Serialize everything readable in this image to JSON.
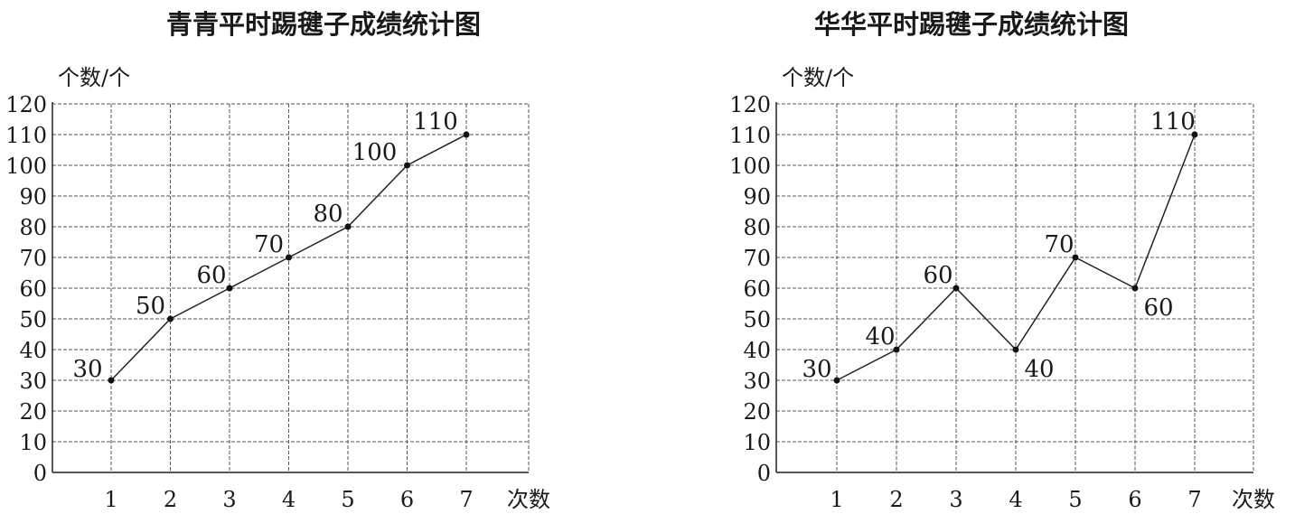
{
  "chart_data": [
    {
      "type": "line",
      "title": "青青平时踢毽子成绩统计图",
      "ylabel": "个数/个",
      "xlabel": "次数",
      "x": [
        1,
        2,
        3,
        4,
        5,
        6,
        7
      ],
      "y_ticks": [
        0,
        10,
        20,
        30,
        40,
        50,
        60,
        70,
        80,
        90,
        100,
        110,
        120
      ],
      "ylim": [
        0,
        120
      ],
      "grid": true,
      "series": [
        {
          "values": [
            30,
            50,
            60,
            70,
            80,
            100,
            110
          ]
        }
      ]
    },
    {
      "type": "line",
      "title": "华华平时踢毽子成绩统计图",
      "ylabel": "个数/个",
      "xlabel": "次数",
      "x": [
        1,
        2,
        3,
        4,
        5,
        6,
        7
      ],
      "y_ticks": [
        0,
        10,
        20,
        30,
        40,
        50,
        60,
        70,
        80,
        90,
        100,
        110,
        120
      ],
      "ylim": [
        0,
        120
      ],
      "grid": true,
      "series": [
        {
          "values": [
            30,
            40,
            60,
            40,
            70,
            60,
            110
          ]
        }
      ]
    }
  ]
}
